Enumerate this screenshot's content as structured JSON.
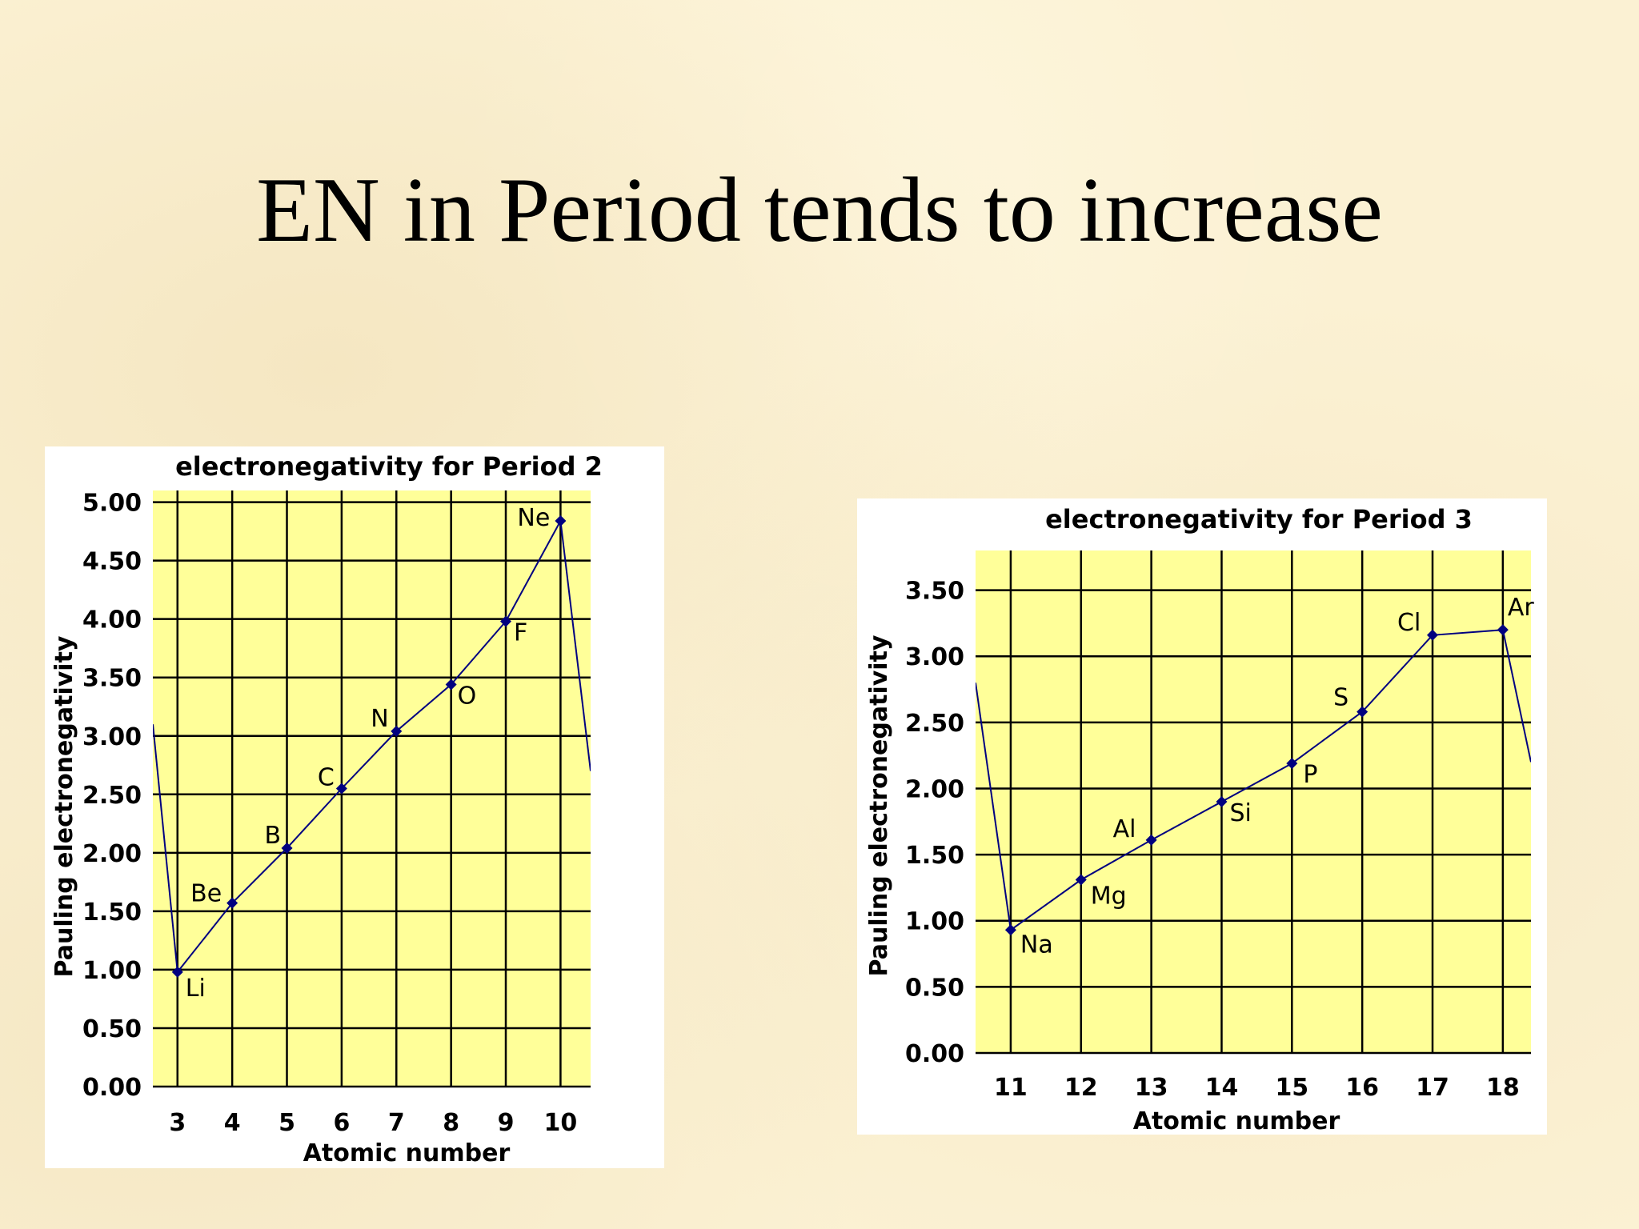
{
  "slide": {
    "title": "EN in Period tends to increase"
  },
  "colors": {
    "plot_background": "#ffff99",
    "grid": "#000000",
    "series": "#000080"
  },
  "chart_data": [
    {
      "id": "period2",
      "type": "line",
      "title": "electronegativity for Period 2",
      "xlabel": "Atomic number",
      "ylabel": "Pauling electronegativity",
      "xlim": [
        2.55,
        10.55
      ],
      "ylim": [
        0,
        5.1
      ],
      "grid": true,
      "x_ticks": [
        3,
        4,
        5,
        6,
        7,
        8,
        9,
        10
      ],
      "y_ticks": [
        0,
        0.5,
        1,
        1.5,
        2,
        2.5,
        3,
        3.5,
        4,
        4.5,
        5
      ],
      "y_tick_labels": [
        "0.00",
        "0.50",
        "1.00",
        "1.50",
        "2.00",
        "2.50",
        "3.00",
        "3.50",
        "4.00",
        "4.50",
        "5.00"
      ],
      "points": [
        {
          "x": 3,
          "y": 0.98,
          "label": "Li"
        },
        {
          "x": 4,
          "y": 1.57,
          "label": "Be"
        },
        {
          "x": 5,
          "y": 2.04,
          "label": "B"
        },
        {
          "x": 6,
          "y": 2.55,
          "label": "C"
        },
        {
          "x": 7,
          "y": 3.04,
          "label": "N"
        },
        {
          "x": 8,
          "y": 3.44,
          "label": "O"
        },
        {
          "x": 9,
          "y": 3.98,
          "label": "F"
        },
        {
          "x": 10,
          "y": 4.84,
          "label": "Ne"
        }
      ],
      "lead_in": {
        "x": 2.55,
        "y": 3.1
      },
      "lead_out": {
        "x": 10.55,
        "y": 2.7
      }
    },
    {
      "id": "period3",
      "type": "line",
      "title": "electronegativity for Period 3",
      "xlabel": "Atomic number",
      "ylabel": "Pauling electronegativity",
      "xlim": [
        10.5,
        18.4
      ],
      "ylim": [
        0,
        3.8
      ],
      "grid": true,
      "x_ticks": [
        11,
        12,
        13,
        14,
        15,
        16,
        17,
        18
      ],
      "y_ticks": [
        0,
        0.5,
        1,
        1.5,
        2,
        2.5,
        3,
        3.5
      ],
      "y_tick_labels": [
        "0.00",
        "0.50",
        "1.00",
        "1.50",
        "2.00",
        "2.50",
        "3.00",
        "3.50"
      ],
      "points": [
        {
          "x": 11,
          "y": 0.93,
          "label": "Na"
        },
        {
          "x": 12,
          "y": 1.31,
          "label": "Mg"
        },
        {
          "x": 13,
          "y": 1.61,
          "label": "Al"
        },
        {
          "x": 14,
          "y": 1.9,
          "label": "Si"
        },
        {
          "x": 15,
          "y": 2.19,
          "label": "P"
        },
        {
          "x": 16,
          "y": 2.58,
          "label": "S"
        },
        {
          "x": 17,
          "y": 3.16,
          "label": "Cl"
        },
        {
          "x": 18,
          "y": 3.2,
          "label": "Ar"
        }
      ],
      "lead_in": {
        "x": 10.5,
        "y": 2.8
      },
      "lead_out": {
        "x": 18.4,
        "y": 2.2
      }
    }
  ]
}
